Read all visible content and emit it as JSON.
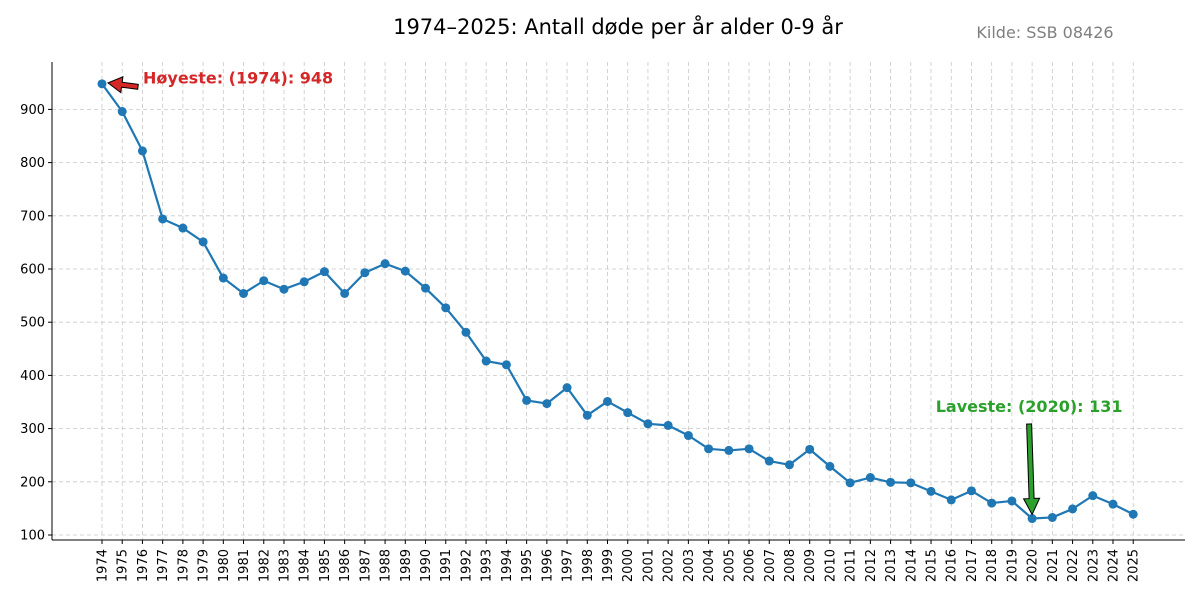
{
  "chart_data": {
    "type": "line",
    "title": "1974–2025: Antall døde per år alder 0-9 år",
    "source_note": "Kilde: SSB 08426",
    "xlabel": "",
    "ylabel": "",
    "x": [
      "1974",
      "1975",
      "1976",
      "1977",
      "1978",
      "1979",
      "1980",
      "1981",
      "1982",
      "1983",
      "1984",
      "1985",
      "1986",
      "1987",
      "1988",
      "1989",
      "1990",
      "1991",
      "1992",
      "1993",
      "1994",
      "1995",
      "1996",
      "1997",
      "1998",
      "1999",
      "2000",
      "2001",
      "2002",
      "2003",
      "2004",
      "2005",
      "2006",
      "2007",
      "2008",
      "2009",
      "2010",
      "2011",
      "2012",
      "2013",
      "2014",
      "2015",
      "2016",
      "2017",
      "2018",
      "2019",
      "2020",
      "2021",
      "2022",
      "2023",
      "2024",
      "2025"
    ],
    "series": [
      {
        "values": [
          948,
          896,
          822,
          694,
          677,
          651,
          583,
          554,
          578,
          562,
          576,
          595,
          554,
          593,
          610,
          596,
          564,
          527,
          481,
          427,
          420,
          353,
          347,
          377,
          325,
          351,
          330,
          309,
          306,
          287,
          262,
          259,
          262,
          239,
          232,
          261,
          229,
          198,
          208,
          199,
          198,
          182,
          166,
          183,
          160,
          164,
          131,
          133,
          149,
          174,
          158,
          139
        ]
      }
    ],
    "yticks": [
      "100",
      "200",
      "300",
      "400",
      "500",
      "600",
      "700",
      "800",
      "900"
    ],
    "ylim": [
      90,
      990
    ],
    "grid": true,
    "color": "#1f77b4",
    "annotations": [
      {
        "text": "Høyeste: (1974): 948",
        "x": "1974",
        "y": 948,
        "color": "#d62728"
      },
      {
        "text": "Laveste: (2020): 131",
        "x": "2020",
        "y": 131,
        "color": "#2ca02c"
      }
    ]
  }
}
